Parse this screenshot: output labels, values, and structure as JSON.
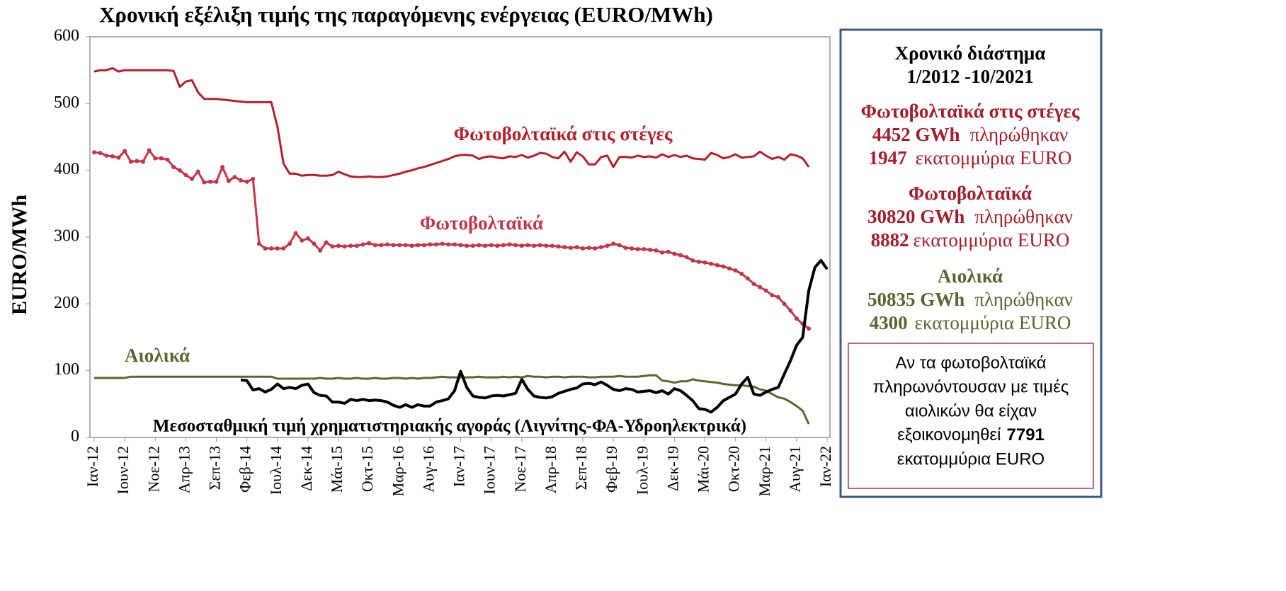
{
  "chart_data": {
    "type": "line",
    "title": "Χρονική εξέλιξη τιμής της παραγόμενης ενέργειας (EURO/MWh)",
    "y_label": "EURO/MWh",
    "ylim": [
      0,
      600
    ],
    "yticks": [
      0,
      100,
      200,
      300,
      400,
      500,
      600
    ],
    "categories": [
      "Ιαν-12",
      null,
      null,
      null,
      null,
      "Ιουν-12",
      null,
      null,
      null,
      null,
      "Νοε-12",
      null,
      null,
      null,
      null,
      "Απρ-13",
      null,
      null,
      null,
      null,
      "Σεπ-13",
      null,
      null,
      null,
      null,
      "Φεβ-14",
      null,
      null,
      null,
      null,
      "Ιουλ-14",
      null,
      null,
      null,
      null,
      "Δεκ-14",
      null,
      null,
      null,
      null,
      "Μάι-15",
      null,
      null,
      null,
      null,
      "Οκτ-15",
      null,
      null,
      null,
      null,
      "Μαρ-16",
      null,
      null,
      null,
      null,
      "Αυγ-16",
      null,
      null,
      null,
      null,
      "Ιαν-17",
      null,
      null,
      null,
      null,
      "Ιουν-17",
      null,
      null,
      null,
      null,
      "Νοε-17",
      null,
      null,
      null,
      null,
      "Απρ-18",
      null,
      null,
      null,
      null,
      "Σεπ-18",
      null,
      null,
      null,
      null,
      "Φεβ-19",
      null,
      null,
      null,
      null,
      "Ιουλ-19",
      null,
      null,
      null,
      null,
      "Δεκ-19",
      null,
      null,
      null,
      null,
      "Μάι-20",
      null,
      null,
      null,
      null,
      "Οκτ-20",
      null,
      null,
      null,
      null,
      "Μαρ-21",
      null,
      null,
      null,
      null,
      "Αυγ-21",
      null,
      null,
      null,
      null,
      "Ιαν-22"
    ],
    "series": [
      {
        "name": "Φωτοβολταϊκά στις στέγες",
        "color": "#b51f2b",
        "markers": false,
        "values": [
          548,
          550,
          550,
          553,
          548,
          550,
          550,
          550,
          550,
          550,
          550,
          550,
          550,
          549,
          525,
          533,
          535,
          517,
          507,
          507,
          507,
          506,
          505,
          504,
          503,
          502,
          502,
          502,
          502,
          502,
          465,
          410,
          395,
          395,
          392,
          393,
          393,
          392,
          392,
          393,
          398,
          394,
          391,
          390,
          390,
          391,
          390,
          390,
          391,
          393,
          395,
          398,
          400,
          403,
          405,
          408,
          411,
          414,
          417,
          421,
          423,
          423,
          422,
          417,
          420,
          421,
          419,
          418,
          421,
          420,
          423,
          419,
          422,
          426,
          425,
          420,
          418,
          428,
          413,
          427,
          421,
          409,
          409,
          420,
          422,
          405,
          420,
          420,
          419,
          422,
          420,
          421,
          419,
          424,
          420,
          423,
          420,
          422,
          418,
          417,
          416,
          426,
          423,
          418,
          420,
          424,
          419,
          420,
          421,
          428,
          422,
          417,
          420,
          416,
          424,
          422,
          418,
          405,
          null,
          null,
          null
        ]
      },
      {
        "name": "Φωτοβολταϊκά",
        "color": "#c2364a",
        "markers": true,
        "values": [
          427,
          426,
          422,
          421,
          419,
          429,
          413,
          414,
          413,
          430,
          418,
          418,
          416,
          405,
          400,
          393,
          387,
          398,
          382,
          383,
          383,
          405,
          384,
          390,
          385,
          383,
          387,
          290,
          283,
          283,
          283,
          283,
          290,
          306,
          295,
          298,
          290,
          280,
          292,
          286,
          287,
          286,
          287,
          287,
          289,
          291,
          288,
          288,
          289,
          288,
          288,
          288,
          287,
          288,
          288,
          289,
          289,
          290,
          289,
          289,
          288,
          287,
          287,
          288,
          287,
          288,
          287,
          288,
          289,
          288,
          287,
          288,
          287,
          288,
          287,
          287,
          286,
          285,
          284,
          285,
          283,
          284,
          283,
          285,
          287,
          290,
          288,
          284,
          283,
          282,
          282,
          281,
          280,
          277,
          278,
          275,
          273,
          270,
          265,
          263,
          262,
          260,
          258,
          256,
          253,
          250,
          245,
          238,
          230,
          225,
          220,
          213,
          210,
          200,
          190,
          178,
          170,
          163,
          null,
          null,
          null
        ]
      },
      {
        "name": "Αιολικά",
        "color": "#636232",
        "markers": false,
        "values": [
          89,
          89,
          89,
          89,
          89,
          89,
          91,
          91,
          91,
          91,
          91,
          91,
          91,
          91,
          91,
          91,
          91,
          91,
          91,
          91,
          91,
          91,
          91,
          91,
          91,
          91,
          91,
          91,
          91,
          91,
          88,
          88,
          88,
          88,
          88,
          88,
          88,
          89,
          88,
          88,
          89,
          88,
          88,
          89,
          88,
          88,
          89,
          88,
          88,
          89,
          89,
          88,
          89,
          88,
          89,
          89,
          90,
          91,
          90,
          90,
          90,
          90,
          90,
          91,
          90,
          90,
          90,
          91,
          90,
          91,
          90,
          92,
          91,
          91,
          90,
          91,
          91,
          90,
          91,
          91,
          91,
          90,
          90,
          91,
          91,
          91,
          92,
          91,
          91,
          91,
          92,
          93,
          93,
          85,
          84,
          82,
          84,
          84,
          87,
          85,
          84,
          83,
          82,
          80,
          79,
          78,
          78,
          77,
          76,
          72,
          70,
          65,
          60,
          58,
          53,
          47,
          40,
          20,
          null,
          null,
          null
        ]
      },
      {
        "name": "Μεσοσταθμική τιμή χρηματιστηριακής αγοράς (Λιγνίτης-ΦΑ-Υδροηλεκτρικά)",
        "color": "#000000",
        "markers": false,
        "values": [
          null,
          null,
          null,
          null,
          null,
          null,
          null,
          null,
          null,
          null,
          null,
          null,
          null,
          null,
          null,
          null,
          null,
          null,
          null,
          null,
          null,
          null,
          null,
          null,
          86,
          85,
          71,
          73,
          68,
          72,
          80,
          73,
          75,
          73,
          78,
          80,
          67,
          63,
          62,
          53,
          53,
          51,
          57,
          55,
          57,
          55,
          56,
          55,
          53,
          48,
          45,
          49,
          45,
          49,
          47,
          47,
          53,
          55,
          58,
          70,
          99,
          75,
          62,
          60,
          59,
          62,
          63,
          62,
          64,
          66,
          87,
          72,
          62,
          60,
          59,
          61,
          66,
          69,
          72,
          74,
          80,
          81,
          79,
          83,
          78,
          72,
          70,
          73,
          72,
          68,
          69,
          70,
          67,
          70,
          65,
          73,
          70,
          63,
          55,
          43,
          42,
          38,
          45,
          55,
          60,
          65,
          80,
          90,
          65,
          63,
          68,
          72,
          75,
          95,
          115,
          138,
          150,
          220,
          255,
          265,
          252
        ]
      }
    ]
  },
  "panel": {
    "period": [
      "Χρονικό διάστημα",
      "1/2012 -10/2021"
    ],
    "groups": [
      {
        "name": "Φωτοβολταϊκά στις στέγες",
        "color": "#a51c2a",
        "lines": [
          [
            "4452 GWh",
            "πληρώθηκαν"
          ],
          [
            "1947",
            "εκατομμύρια EURO"
          ]
        ]
      },
      {
        "name": "Φωτοβολταϊκά",
        "color": "#a51c2a",
        "lines": [
          [
            "30820 GWh",
            "πληρώθηκαν"
          ],
          [
            "8882",
            "εκατομμύρια EURO"
          ]
        ]
      },
      {
        "name": "Αιολικά",
        "color": "#5f6130",
        "lines": [
          [
            "50835 GWh",
            "πληρώθηκαν"
          ],
          [
            "4300",
            "εκατομμύρια EURO"
          ]
        ]
      }
    ],
    "note": {
      "lines": [
        "Αν τα φωτοβολταϊκά",
        "πληρωνόντουσαν με τιμές",
        "αιολικών θα είχαν"
      ],
      "verb": "εξοικονομηθεί",
      "amount": "7791",
      "unit": "εκατομμύρια EURO"
    }
  }
}
